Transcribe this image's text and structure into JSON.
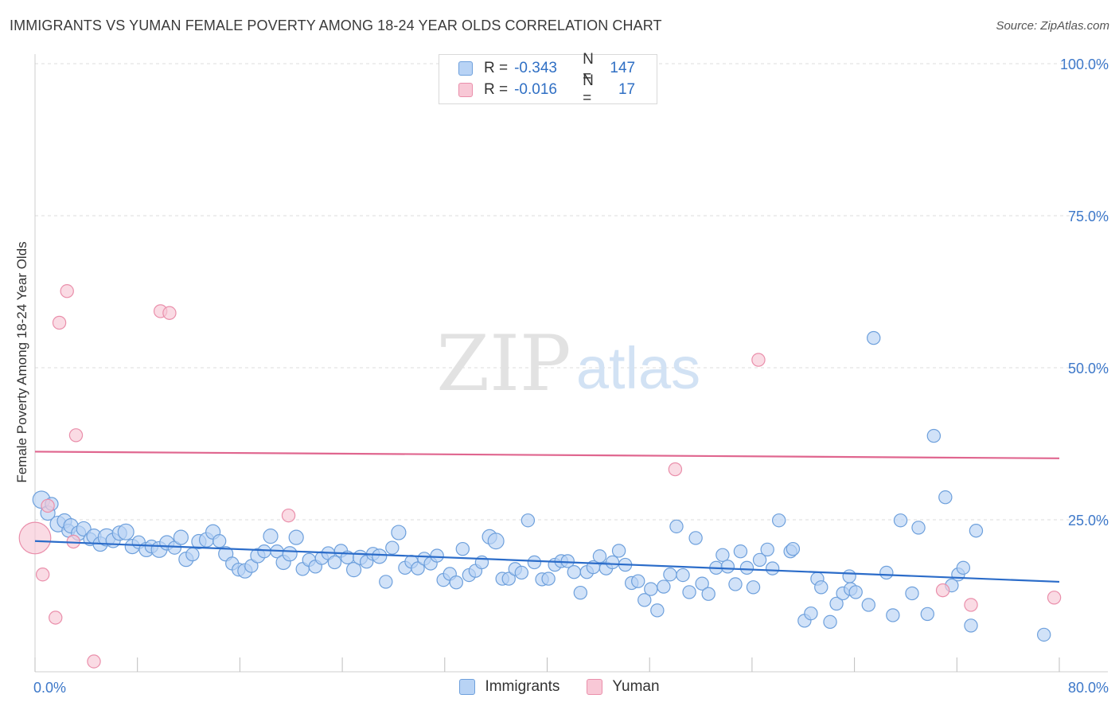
{
  "title": "IMMIGRANTS VS YUMAN FEMALE POVERTY AMONG 18-24 YEAR OLDS CORRELATION CHART",
  "source": "Source: ZipAtlas.com",
  "colors": {
    "immigrants_fill": "#b8d3f5",
    "immigrants_stroke": "#6ea0dc",
    "immigrants_line": "#2b6cc9",
    "yuman_fill": "#f8c8d6",
    "yuman_stroke": "#ea8fab",
    "yuman_line": "#e0668f",
    "tick_text": "#3d78c9",
    "grid": "#dcdcdc"
  },
  "legend": {
    "rows": [
      {
        "r_label": "R =",
        "r_value": "-0.343",
        "n_label": "N =",
        "n_value": "147"
      },
      {
        "r_label": "R =",
        "r_value": "-0.016",
        "n_label": "N =",
        "n_value": "17"
      }
    ]
  },
  "bottom_legend": {
    "immigrants": "Immigrants",
    "yuman": "Yuman"
  },
  "watermark": {
    "zip": "ZIP",
    "atlas": "atlas"
  },
  "chart_data": {
    "type": "scatter",
    "title": "IMMIGRANTS VS YUMAN FEMALE POVERTY AMONG 18-24 YEAR OLDS CORRELATION CHART",
    "xlabel": "",
    "ylabel": "Female Poverty Among 18-24 Year Olds",
    "xlim": [
      0,
      80
    ],
    "ylim": [
      0,
      100
    ],
    "x_tick_labels": [
      "0.0%",
      "80.0%"
    ],
    "y_tick_labels": [
      "25.0%",
      "50.0%",
      "75.0%",
      "100.0%"
    ],
    "y_ticks": [
      25,
      50,
      75,
      100
    ],
    "grid": true,
    "legend_placement": "top-center",
    "series": [
      {
        "name": "Immigrants",
        "trend": {
          "x": [
            0,
            80
          ],
          "y": [
            21.5,
            14.8
          ]
        },
        "points": [
          [
            0.5,
            28.3,
            1.2
          ],
          [
            1.0,
            26.1,
            1.0
          ],
          [
            1.3,
            27.6,
            0.9
          ],
          [
            1.8,
            24.3,
            1.1
          ],
          [
            2.3,
            24.8,
            1.0
          ],
          [
            2.6,
            23.2,
            0.9
          ],
          [
            2.8,
            24.0,
            1.0
          ],
          [
            3.4,
            22.8,
            1.0
          ],
          [
            3.8,
            23.5,
            1.0
          ],
          [
            4.3,
            21.8,
            0.9
          ],
          [
            4.6,
            22.3,
            1.0
          ],
          [
            5.1,
            21.0,
            1.0
          ],
          [
            5.6,
            22.1,
            1.2
          ],
          [
            6.1,
            21.6,
            1.0
          ],
          [
            6.6,
            22.8,
            1.0
          ],
          [
            7.1,
            23.0,
            1.1
          ],
          [
            7.6,
            20.6,
            1.0
          ],
          [
            8.1,
            21.3,
            0.9
          ],
          [
            8.7,
            20.1,
            1.0
          ],
          [
            9.1,
            20.6,
            0.9
          ],
          [
            9.7,
            20.1,
            1.1
          ],
          [
            10.3,
            21.2,
            1.0
          ],
          [
            10.9,
            20.4,
            0.9
          ],
          [
            11.4,
            22.1,
            1.0
          ],
          [
            11.8,
            18.5,
            1.0
          ],
          [
            12.3,
            19.3,
            0.9
          ],
          [
            12.8,
            21.4,
            1.0
          ],
          [
            13.4,
            21.7,
            1.0
          ],
          [
            13.9,
            23.0,
            1.0
          ],
          [
            14.4,
            21.5,
            0.9
          ],
          [
            14.9,
            19.4,
            1.0
          ],
          [
            15.4,
            17.8,
            0.9
          ],
          [
            15.9,
            16.8,
            0.9
          ],
          [
            16.4,
            16.6,
            1.0
          ],
          [
            16.9,
            17.4,
            0.9
          ],
          [
            17.4,
            19.1,
            1.0
          ],
          [
            17.9,
            19.8,
            0.9
          ],
          [
            18.4,
            22.3,
            1.0
          ],
          [
            18.9,
            19.8,
            0.9
          ],
          [
            19.4,
            18.0,
            1.0
          ],
          [
            19.9,
            19.4,
            1.0
          ],
          [
            20.4,
            22.1,
            1.0
          ],
          [
            20.9,
            16.9,
            0.9
          ],
          [
            21.4,
            18.4,
            0.9
          ],
          [
            21.9,
            17.3,
            0.9
          ],
          [
            22.4,
            18.7,
            0.9
          ],
          [
            22.9,
            19.5,
            0.9
          ],
          [
            23.4,
            18.0,
            0.9
          ],
          [
            23.9,
            19.9,
            0.9
          ],
          [
            24.4,
            18.8,
            0.9
          ],
          [
            24.9,
            16.8,
            1.0
          ],
          [
            25.4,
            18.8,
            1.0
          ],
          [
            25.9,
            18.1,
            0.9
          ],
          [
            26.4,
            19.4,
            0.9
          ],
          [
            26.9,
            19.0,
            1.0
          ],
          [
            27.4,
            14.8,
            0.9
          ],
          [
            27.9,
            20.4,
            0.9
          ],
          [
            28.4,
            22.9,
            1.0
          ],
          [
            28.9,
            17.1,
            0.9
          ],
          [
            29.4,
            18.1,
            0.9
          ],
          [
            29.9,
            17.0,
            0.9
          ],
          [
            30.4,
            18.6,
            0.9
          ],
          [
            30.9,
            17.8,
            0.9
          ],
          [
            31.4,
            19.1,
            0.9
          ],
          [
            31.9,
            15.1,
            0.9
          ],
          [
            32.4,
            16.1,
            0.9
          ],
          [
            32.9,
            14.7,
            0.9
          ],
          [
            33.4,
            20.2,
            0.9
          ],
          [
            33.9,
            15.9,
            0.9
          ],
          [
            34.4,
            16.6,
            0.9
          ],
          [
            34.9,
            18.0,
            0.9
          ],
          [
            35.5,
            22.2,
            1.0
          ],
          [
            36.0,
            21.5,
            1.1
          ],
          [
            36.5,
            15.3,
            0.9
          ],
          [
            37.0,
            15.3,
            0.9
          ],
          [
            37.5,
            16.9,
            0.9
          ],
          [
            38.0,
            16.3,
            0.9
          ],
          [
            38.5,
            24.9,
            0.9
          ],
          [
            39.0,
            18.0,
            0.9
          ],
          [
            39.6,
            15.2,
            0.9
          ],
          [
            40.1,
            15.3,
            0.9
          ],
          [
            40.6,
            17.6,
            0.9
          ],
          [
            41.1,
            18.2,
            0.9
          ],
          [
            41.6,
            18.2,
            0.9
          ],
          [
            42.1,
            16.4,
            0.9
          ],
          [
            42.6,
            13.0,
            0.9
          ],
          [
            43.1,
            16.4,
            0.9
          ],
          [
            43.6,
            17.2,
            0.9
          ],
          [
            44.1,
            19.0,
            0.9
          ],
          [
            44.6,
            17.0,
            0.9
          ],
          [
            45.1,
            18.0,
            0.9
          ],
          [
            45.6,
            19.9,
            0.9
          ],
          [
            46.1,
            17.6,
            0.9
          ],
          [
            46.6,
            14.6,
            0.9
          ],
          [
            47.1,
            14.9,
            0.9
          ],
          [
            47.6,
            11.8,
            0.9
          ],
          [
            48.1,
            13.6,
            0.9
          ],
          [
            48.6,
            10.1,
            0.9
          ],
          [
            49.1,
            14.0,
            0.9
          ],
          [
            49.6,
            16.0,
            0.9
          ],
          [
            50.1,
            23.9,
            0.9
          ],
          [
            50.6,
            15.9,
            0.9
          ],
          [
            51.1,
            13.1,
            0.9
          ],
          [
            51.6,
            22.0,
            0.9
          ],
          [
            52.1,
            14.5,
            0.9
          ],
          [
            52.6,
            12.8,
            0.9
          ],
          [
            53.2,
            17.1,
            0.9
          ],
          [
            53.7,
            19.2,
            0.9
          ],
          [
            54.1,
            17.3,
            0.9
          ],
          [
            54.7,
            14.4,
            0.9
          ],
          [
            55.1,
            19.8,
            0.9
          ],
          [
            55.6,
            17.1,
            0.9
          ],
          [
            56.1,
            13.9,
            0.9
          ],
          [
            56.6,
            18.4,
            0.9
          ],
          [
            57.2,
            20.1,
            0.9
          ],
          [
            57.6,
            17.0,
            0.9
          ],
          [
            58.1,
            24.9,
            0.9
          ],
          [
            59.0,
            19.8,
            0.9
          ],
          [
            59.2,
            20.2,
            0.9
          ],
          [
            60.1,
            8.4,
            0.9
          ],
          [
            60.6,
            9.6,
            0.9
          ],
          [
            61.1,
            15.3,
            0.9
          ],
          [
            61.4,
            13.9,
            0.9
          ],
          [
            62.1,
            8.2,
            0.9
          ],
          [
            62.6,
            11.2,
            0.9
          ],
          [
            63.1,
            12.9,
            0.9
          ],
          [
            63.6,
            15.7,
            0.9
          ],
          [
            63.7,
            13.6,
            0.9
          ],
          [
            64.1,
            13.1,
            0.9
          ],
          [
            65.1,
            11.0,
            0.9
          ],
          [
            65.5,
            54.9,
            0.9
          ],
          [
            66.5,
            16.3,
            0.9
          ],
          [
            67.0,
            9.3,
            0.9
          ],
          [
            67.6,
            24.9,
            0.9
          ],
          [
            68.5,
            12.9,
            0.9
          ],
          [
            69.0,
            23.7,
            0.9
          ],
          [
            69.7,
            9.5,
            0.9
          ],
          [
            70.2,
            38.8,
            0.9
          ],
          [
            71.1,
            28.7,
            0.9
          ],
          [
            71.6,
            14.2,
            0.9
          ],
          [
            72.1,
            16.0,
            0.9
          ],
          [
            72.5,
            17.1,
            0.9
          ],
          [
            73.1,
            7.6,
            0.9
          ],
          [
            73.5,
            23.2,
            0.9
          ],
          [
            78.8,
            6.1,
            0.9
          ]
        ]
      },
      {
        "name": "Yuman",
        "trend": {
          "x": [
            0,
            80
          ],
          "y": [
            36.2,
            35.1
          ]
        },
        "points": [
          [
            0.0,
            22.0,
            2.2
          ],
          [
            0.6,
            16.0,
            0.9
          ],
          [
            1.0,
            27.3,
            0.9
          ],
          [
            1.6,
            8.9,
            0.9
          ],
          [
            1.9,
            57.4,
            0.9
          ],
          [
            2.5,
            62.6,
            0.9
          ],
          [
            3.0,
            21.4,
            0.9
          ],
          [
            3.2,
            38.9,
            0.9
          ],
          [
            4.6,
            1.7,
            0.9
          ],
          [
            9.8,
            59.3,
            0.9
          ],
          [
            10.5,
            59.0,
            0.9
          ],
          [
            19.8,
            25.7,
            0.9
          ],
          [
            50.0,
            33.3,
            0.9
          ],
          [
            56.5,
            51.3,
            0.9
          ],
          [
            70.9,
            13.4,
            0.9
          ],
          [
            73.1,
            11.0,
            0.9
          ],
          [
            79.6,
            12.2,
            0.9
          ]
        ]
      }
    ]
  }
}
